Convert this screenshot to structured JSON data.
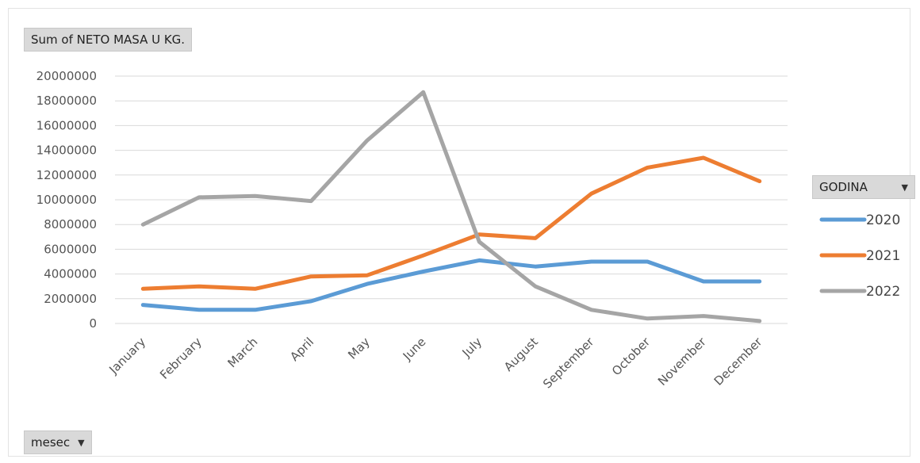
{
  "buttons": {
    "values_field": "Sum of NETO  MASA U KG.",
    "legend_field": "GODINA",
    "axis_field": "mesec",
    "dropdown_icon": "caret-down-icon"
  },
  "chart_data": {
    "type": "line",
    "title": "",
    "xlabel": "",
    "ylabel": "",
    "ylim": [
      0,
      20000000
    ],
    "yticks": [
      0,
      2000000,
      4000000,
      6000000,
      8000000,
      10000000,
      12000000,
      14000000,
      16000000,
      18000000,
      20000000
    ],
    "grid": true,
    "legend_position": "right",
    "categories": [
      "January",
      "February",
      "March",
      "April",
      "May",
      "June",
      "July",
      "August",
      "September",
      "October",
      "November",
      "December"
    ],
    "series": [
      {
        "name": "2020",
        "color": "#5b9bd5",
        "values": [
          1500000,
          1100000,
          1100000,
          1800000,
          3200000,
          4200000,
          5100000,
          4600000,
          5000000,
          5000000,
          3400000,
          3400000
        ]
      },
      {
        "name": "2021",
        "color": "#ed7d31",
        "values": [
          2800000,
          3000000,
          2800000,
          3800000,
          3900000,
          5500000,
          7200000,
          6900000,
          10500000,
          12600000,
          13400000,
          11500000
        ]
      },
      {
        "name": "2022",
        "color": "#a5a5a5",
        "values": [
          8000000,
          10200000,
          10300000,
          9900000,
          14800000,
          18700000,
          6600000,
          3000000,
          1100000,
          400000,
          600000,
          200000
        ]
      }
    ]
  }
}
